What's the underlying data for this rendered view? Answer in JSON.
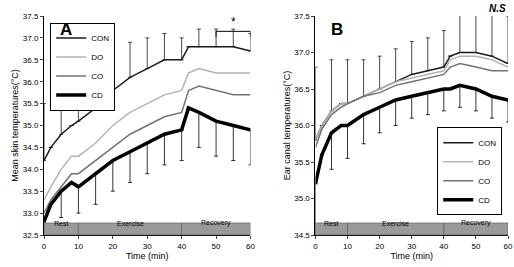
{
  "chart_data": [
    {
      "type": "line",
      "x_label": "Time (min)",
      "y_label": "Mean skin temperatures(°C)",
      "x": [
        0,
        2,
        5,
        8,
        10,
        15,
        20,
        25,
        30,
        35,
        40,
        42,
        45,
        50,
        55,
        60
      ],
      "xlim": [
        0,
        60
      ],
      "xticks": [
        0,
        10,
        20,
        30,
        40,
        50,
        60
      ],
      "ylim": [
        32.5,
        37.5
      ],
      "yticks": [
        32.5,
        33.0,
        33.5,
        34.0,
        34.5,
        35.0,
        35.5,
        36.0,
        36.5,
        37.0,
        37.5
      ],
      "legend": "upper left",
      "series": [
        {
          "name": "CON",
          "color": "#1a1a1a",
          "line_style": "thin",
          "values": [
            34.2,
            34.5,
            34.8,
            35.0,
            35.1,
            35.4,
            35.8,
            36.1,
            36.3,
            36.5,
            36.5,
            36.8,
            36.8,
            36.8,
            36.8,
            36.7
          ],
          "error_plus": [
            1.3,
            null,
            1.1,
            null,
            1.0,
            0.9,
            0.9,
            0.8,
            0.7,
            0.6,
            0.5,
            null,
            0.4,
            0.4,
            0.4,
            0.4
          ]
        },
        {
          "name": "DO",
          "color": "#b4b4b4",
          "line_style": "thin",
          "values": [
            33.3,
            33.6,
            34.0,
            34.3,
            34.3,
            34.6,
            35.0,
            35.3,
            35.5,
            35.7,
            35.8,
            36.2,
            36.3,
            36.2,
            36.2,
            36.2
          ]
        },
        {
          "name": "CO",
          "color": "#737373",
          "line_style": "thin",
          "values": [
            33.0,
            33.3,
            33.6,
            33.9,
            33.9,
            34.2,
            34.5,
            34.8,
            35.0,
            35.2,
            35.3,
            35.8,
            35.9,
            35.8,
            35.7,
            35.7
          ]
        },
        {
          "name": "CD",
          "color": "#000000",
          "line_style": "thick",
          "values": [
            32.8,
            33.2,
            33.5,
            33.7,
            33.6,
            33.9,
            34.2,
            34.4,
            34.6,
            34.8,
            34.9,
            35.4,
            35.3,
            35.1,
            35.0,
            34.9
          ],
          "error_minus": [
            0.6,
            null,
            0.6,
            null,
            0.6,
            0.7,
            0.7,
            0.7,
            0.7,
            0.7,
            0.7,
            null,
            0.8,
            0.8,
            0.8,
            0.8
          ]
        }
      ],
      "phases": [
        {
          "label": "Rest",
          "start": 0,
          "end": 10
        },
        {
          "label": "Exercise",
          "start": 10,
          "end": 40
        },
        {
          "label": "Recovery",
          "start": 40,
          "end": 60
        }
      ],
      "annotations": [
        {
          "text": "A"
        },
        {
          "text": "*",
          "x0": 50,
          "x1": 60,
          "y": 37.15
        }
      ]
    },
    {
      "type": "line",
      "x_label": "Time (min)",
      "y_label": "Ear canal temperatures(°C)",
      "x": [
        0,
        2,
        5,
        8,
        10,
        15,
        20,
        25,
        30,
        35,
        40,
        42,
        45,
        50,
        55,
        60
      ],
      "xlim": [
        0,
        60
      ],
      "xticks": [
        0,
        10,
        20,
        30,
        40,
        50,
        60
      ],
      "ylim": [
        34.5,
        37.5
      ],
      "yticks": [
        34.5,
        35.0,
        35.5,
        36.0,
        36.5,
        37.0,
        37.5
      ],
      "legend": "lower right",
      "series": [
        {
          "name": "CON",
          "color": "#1a1a1a",
          "line_style": "thin",
          "values": [
            35.8,
            36.0,
            36.2,
            36.3,
            36.3,
            36.4,
            36.5,
            36.6,
            36.7,
            36.75,
            36.8,
            36.95,
            37.0,
            37.0,
            36.95,
            36.85
          ],
          "error_plus": [
            1.0,
            null,
            0.7,
            null,
            0.6,
            0.5,
            0.45,
            0.45,
            0.45,
            0.45,
            0.5,
            null,
            0.55,
            0.55,
            0.6,
            0.65
          ]
        },
        {
          "name": "DO",
          "color": "#b4b4b4",
          "line_style": "thin",
          "values": [
            35.8,
            36.0,
            36.2,
            36.3,
            36.3,
            36.4,
            36.5,
            36.6,
            36.65,
            36.7,
            36.75,
            36.9,
            36.95,
            36.95,
            36.9,
            36.8
          ]
        },
        {
          "name": "CO",
          "color": "#737373",
          "line_style": "thin",
          "values": [
            35.7,
            35.95,
            36.15,
            36.25,
            36.3,
            36.4,
            36.45,
            36.55,
            36.6,
            36.65,
            36.7,
            36.8,
            36.85,
            36.8,
            36.75,
            36.75
          ]
        },
        {
          "name": "CD",
          "color": "#000000",
          "line_style": "thick",
          "values": [
            35.2,
            35.6,
            35.9,
            36.0,
            36.0,
            36.15,
            36.25,
            36.35,
            36.4,
            36.45,
            36.5,
            36.5,
            36.55,
            36.5,
            36.4,
            36.35
          ],
          "error_minus": [
            0.7,
            null,
            0.5,
            null,
            0.45,
            0.4,
            0.35,
            0.35,
            0.3,
            0.3,
            0.3,
            null,
            0.3,
            0.3,
            0.3,
            0.3
          ]
        }
      ],
      "phases": [
        {
          "label": "Rest",
          "start": 0,
          "end": 10
        },
        {
          "label": "Exercise",
          "start": 10,
          "end": 40
        },
        {
          "label": "Recovery",
          "start": 40,
          "end": 60
        }
      ],
      "annotations": [
        {
          "text": "B"
        },
        {
          "text": "N.S"
        }
      ]
    }
  ]
}
